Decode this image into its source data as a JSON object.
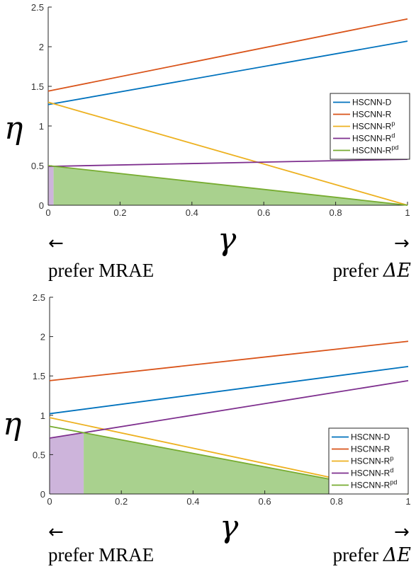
{
  "panels": [
    {
      "y_symbol": "η",
      "x_symbol": "γ",
      "left_arrow": "←",
      "right_arrow": "→",
      "left_caption": "prefer MRAE",
      "right_caption_prefix": "prefer ",
      "right_caption_symbol": "ΔE"
    },
    {
      "y_symbol": "η",
      "x_symbol": "γ",
      "left_arrow": "←",
      "right_arrow": "→",
      "left_caption": "prefer MRAE",
      "right_caption_prefix": "prefer ",
      "right_caption_symbol": "ΔE"
    }
  ],
  "chart_data": [
    {
      "type": "line",
      "title": "",
      "xlabel": "γ",
      "ylabel": "η",
      "xlim": [
        0,
        1
      ],
      "ylim": [
        0,
        2.5
      ],
      "xticks": [
        "0",
        "0.2",
        "0.4",
        "0.6",
        "0.8",
        "1"
      ],
      "yticks": [
        "0",
        "0.5",
        "1",
        "1.5",
        "2",
        "2.5"
      ],
      "legend_position": "middle-right",
      "series": [
        {
          "name": "HSCNN-D",
          "sup": "",
          "color": "#0072BD",
          "x": [
            0,
            1
          ],
          "y": [
            1.27,
            2.07
          ]
        },
        {
          "name": "HSCNN-R",
          "sup": "",
          "color": "#D95319",
          "x": [
            0,
            1
          ],
          "y": [
            1.44,
            2.35
          ]
        },
        {
          "name": "HSCNN-R",
          "sup": "p",
          "color": "#EDB120",
          "x": [
            0,
            1
          ],
          "y": [
            1.3,
            0.0
          ]
        },
        {
          "name": "HSCNN-R",
          "sup": "d",
          "color": "#7E2F8E",
          "x": [
            0,
            1
          ],
          "y": [
            0.49,
            0.58
          ]
        },
        {
          "name": "HSCNN-R",
          "sup": "pd",
          "color": "#77AC30",
          "x": [
            0,
            1
          ],
          "y": [
            0.5,
            0.0
          ]
        }
      ],
      "shaded_regions": [
        {
          "color": "#CDB4DB",
          "x": [
            0,
            0.015
          ],
          "bound_series": "HSCNN-Rd"
        },
        {
          "color": "#A9D18E",
          "x": [
            0.015,
            1
          ],
          "bound_series": "HSCNN-Rpd"
        }
      ]
    },
    {
      "type": "line",
      "title": "",
      "xlabel": "γ",
      "ylabel": "η",
      "xlim": [
        0,
        1
      ],
      "ylim": [
        0,
        2.5
      ],
      "xticks": [
        "0",
        "0.2",
        "0.4",
        "0.6",
        "0.8",
        "1"
      ],
      "yticks": [
        "0",
        "0.5",
        "1",
        "1.5",
        "2",
        "2.5"
      ],
      "legend_position": "lower-right",
      "series": [
        {
          "name": "HSCNN-D",
          "sup": "",
          "color": "#0072BD",
          "x": [
            0,
            1
          ],
          "y": [
            1.02,
            1.62
          ]
        },
        {
          "name": "HSCNN-R",
          "sup": "",
          "color": "#D95319",
          "x": [
            0,
            1
          ],
          "y": [
            1.44,
            1.94
          ]
        },
        {
          "name": "HSCNN-R",
          "sup": "p",
          "color": "#EDB120",
          "x": [
            0,
            1
          ],
          "y": [
            0.97,
            0.0
          ]
        },
        {
          "name": "HSCNN-R",
          "sup": "d",
          "color": "#7E2F8E",
          "x": [
            0,
            1
          ],
          "y": [
            0.71,
            1.44
          ]
        },
        {
          "name": "HSCNN-R",
          "sup": "pd",
          "color": "#77AC30",
          "x": [
            0,
            1
          ],
          "y": [
            0.86,
            0.0
          ]
        }
      ],
      "shaded_regions": [
        {
          "color": "#CDB4DB",
          "x": [
            0,
            0.095
          ],
          "bound_series": "HSCNN-Rd"
        },
        {
          "color": "#A9D18E",
          "x": [
            0.095,
            1
          ],
          "bound_series": "HSCNN-Rpd"
        }
      ]
    }
  ]
}
